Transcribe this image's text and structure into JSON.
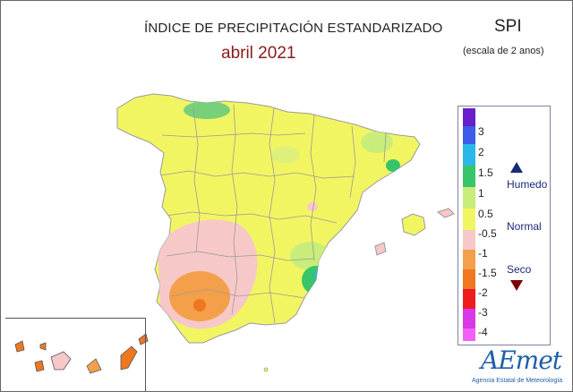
{
  "header": {
    "title": "ÍNDICE DE PRECIPITACIÓN ESTANDARIZADO",
    "period": "abril 2021",
    "index": "SPI",
    "scale_note": "(escala de 2 anos)"
  },
  "legend": {
    "ticks": [
      "3",
      "2",
      "1.5",
      "1",
      "0.5",
      "-0.5",
      "-1",
      "-1.5",
      "-2",
      "-3",
      "-4"
    ],
    "categories": [
      "Humedo",
      "Normal",
      "Seco"
    ],
    "colors": {
      "3": "#6a1fc8",
      "2": "#3d5ce8",
      "1.5": "#2ab8e8",
      "1": "#38c46a",
      "0.5": "#c8ed7a",
      "-0.5": "#f2f562",
      "-1": "#f7c8c8",
      "-1.5": "#f4a04a",
      "-2": "#ee7720",
      "-3": "#ee1c1c",
      "-4": "#d838e8"
    }
  },
  "logo": {
    "wordmark": "AEmet",
    "tagline": "Agencia Estatal de Meteorología"
  }
}
